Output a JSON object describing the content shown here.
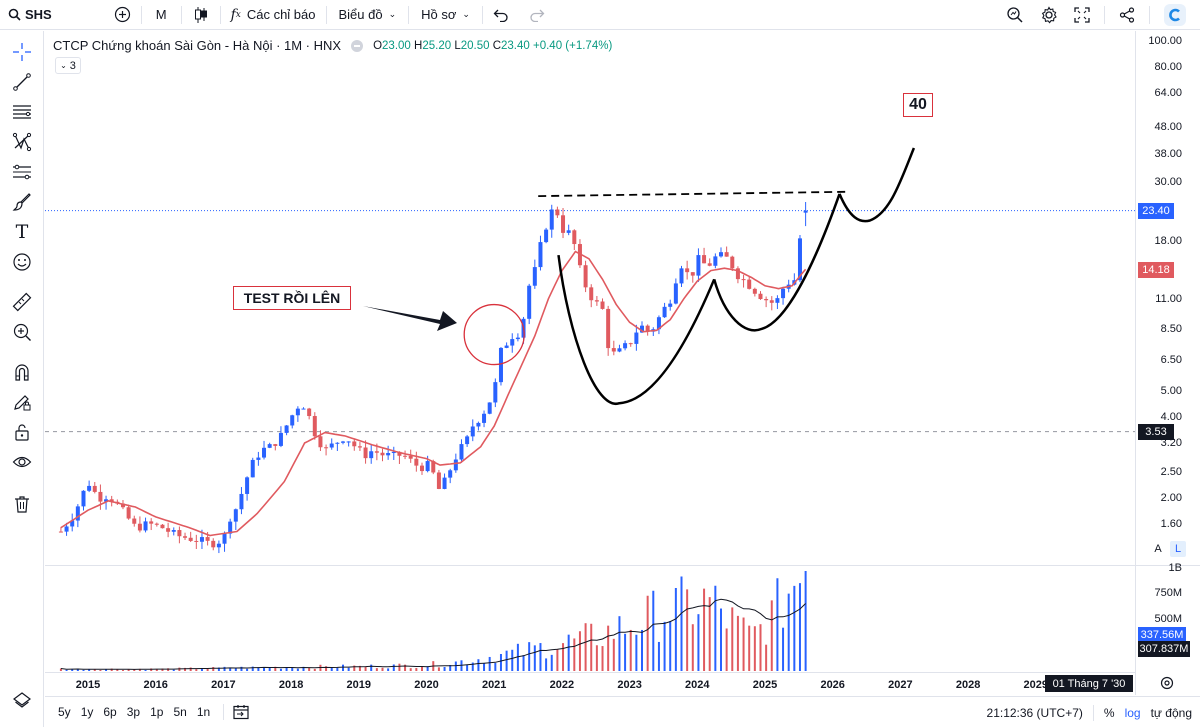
{
  "topbar": {
    "symbol": "SHS",
    "interval": "M",
    "indicators_label": "Các chỉ báo",
    "chart_type_label": "Biểu đồ",
    "profile_label": "Hồ sơ"
  },
  "legend": {
    "title": "CTCP Chứng khoán Sài Gòn - Hà Nội · 1M · HNX",
    "open_label": "O",
    "open": "23.00",
    "high_label": "H",
    "high": "25.20",
    "low_label": "L",
    "low": "20.50",
    "close_label": "C",
    "close": "23.40",
    "change": "+0.40 (+1.74%)",
    "collapsed_count": "3"
  },
  "price_axis": {
    "labels": [
      "100.00",
      "80.00",
      "64.00",
      "48.00",
      "38.00",
      "30.00",
      "18.00",
      "11.00",
      "8.50",
      "6.50",
      "5.00",
      "4.00",
      "3.20",
      "2.50",
      "2.00",
      "1.60"
    ],
    "last_price": "23.40",
    "ma_value": "14.18",
    "crosshair_price": "3.53",
    "auto_label": "A",
    "log_label": "L"
  },
  "volume_axis": {
    "labels": [
      "1B",
      "750M",
      "500M"
    ],
    "volume_value": "337.56M",
    "volume_ma_value": "307.837M"
  },
  "time_axis": {
    "labels": [
      "2015",
      "2016",
      "2017",
      "2018",
      "2019",
      "2020",
      "2021",
      "2022",
      "2023",
      "2024",
      "2025",
      "2026",
      "2027",
      "2028",
      "2029"
    ],
    "crosshair_date": "01 Tháng 7 '30"
  },
  "annotations": {
    "test_label": "TEST RỒI LÊN",
    "target_label": "40"
  },
  "bottombar": {
    "ranges": [
      "5y",
      "1y",
      "6p",
      "3p",
      "1p",
      "5n",
      "1n"
    ],
    "clock": "21:12:36 (UTC+7)",
    "percent": "%",
    "log": "log",
    "auto": "tự động"
  },
  "chart_data": {
    "type": "candlestick",
    "title": "CTCP Chứng khoán Sài Gòn - Hà Nội · 1M · HNX",
    "y_scale": "log",
    "ylim": [
      1.45,
      100
    ],
    "xlim": [
      2014.6,
      2030.6
    ],
    "series": [
      {
        "name": "SHS",
        "kind": "candlestick",
        "interval": "1M"
      },
      {
        "name": "MA",
        "kind": "line",
        "color": "#e05a5f"
      },
      {
        "name": "Volume",
        "kind": "bar"
      },
      {
        "name": "Volume MA",
        "kind": "line",
        "color": "#131722"
      }
    ],
    "close_path": [
      [
        2014.6,
        1.5
      ],
      [
        2014.8,
        1.75
      ],
      [
        2015.0,
        2.3
      ],
      [
        2015.15,
        2.0
      ],
      [
        2015.3,
        2.05
      ],
      [
        2015.5,
        1.8
      ],
      [
        2015.7,
        1.55
      ],
      [
        2015.9,
        1.6
      ],
      [
        2016.1,
        1.55
      ],
      [
        2016.3,
        1.45
      ],
      [
        2016.6,
        1.4
      ],
      [
        2016.8,
        1.35
      ],
      [
        2017.0,
        1.4
      ],
      [
        2017.1,
        1.7
      ],
      [
        2017.2,
        1.85
      ],
      [
        2017.3,
        2.2
      ],
      [
        2017.4,
        2.6
      ],
      [
        2017.55,
        3.0
      ],
      [
        2017.7,
        3.1
      ],
      [
        2017.85,
        3.4
      ],
      [
        2018.0,
        4.0
      ],
      [
        2018.15,
        4.6
      ],
      [
        2018.25,
        4.1
      ],
      [
        2018.35,
        3.5
      ],
      [
        2018.5,
        3.0
      ],
      [
        2018.65,
        3.2
      ],
      [
        2018.8,
        3.4
      ],
      [
        2019.0,
        3.0
      ],
      [
        2019.1,
        2.9
      ],
      [
        2019.2,
        3.0
      ],
      [
        2019.35,
        2.9
      ],
      [
        2019.5,
        2.85
      ],
      [
        2019.65,
        2.9
      ],
      [
        2019.8,
        2.7
      ],
      [
        2019.9,
        2.6
      ],
      [
        2020.05,
        2.65
      ],
      [
        2020.2,
        2.1
      ],
      [
        2020.3,
        2.4
      ],
      [
        2020.45,
        2.9
      ],
      [
        2020.6,
        3.3
      ],
      [
        2020.7,
        3.8
      ],
      [
        2020.8,
        4.0
      ],
      [
        2020.9,
        4.4
      ],
      [
        2021.0,
        5.0
      ],
      [
        2021.1,
        7.0
      ],
      [
        2021.25,
        8.0
      ],
      [
        2021.4,
        8.3
      ],
      [
        2021.5,
        12.0
      ],
      [
        2021.6,
        14.0
      ],
      [
        2021.7,
        18.0
      ],
      [
        2021.8,
        22.0
      ],
      [
        2021.9,
        24.5
      ],
      [
        2022.0,
        20.0
      ],
      [
        2022.15,
        19.0
      ],
      [
        2022.3,
        13.0
      ],
      [
        2022.45,
        11.0
      ],
      [
        2022.6,
        10.0
      ],
      [
        2022.7,
        7.0
      ],
      [
        2022.8,
        6.8
      ],
      [
        2022.9,
        7.2
      ],
      [
        2023.0,
        7.5
      ],
      [
        2023.15,
        8.8
      ],
      [
        2023.3,
        8.2
      ],
      [
        2023.45,
        9.5
      ],
      [
        2023.6,
        11.0
      ],
      [
        2023.75,
        15.0
      ],
      [
        2023.9,
        13.0
      ],
      [
        2024.0,
        15.5
      ],
      [
        2024.15,
        14.5
      ],
      [
        2024.3,
        16.0
      ],
      [
        2024.45,
        15.5
      ],
      [
        2024.6,
        13.5
      ],
      [
        2024.75,
        12.5
      ],
      [
        2024.9,
        11.5
      ],
      [
        2025.0,
        11.0
      ],
      [
        2025.15,
        10.5
      ],
      [
        2025.3,
        12.5
      ],
      [
        2025.45,
        13.0
      ],
      [
        2025.55,
        22.0
      ],
      [
        2025.6,
        23.4
      ]
    ],
    "ma_path": [
      [
        2014.6,
        1.55
      ],
      [
        2015.0,
        1.8
      ],
      [
        2015.3,
        1.95
      ],
      [
        2015.7,
        1.85
      ],
      [
        2016.0,
        1.7
      ],
      [
        2016.5,
        1.55
      ],
      [
        2016.8,
        1.45
      ],
      [
        2017.2,
        1.5
      ],
      [
        2017.5,
        1.75
      ],
      [
        2017.9,
        2.3
      ],
      [
        2018.2,
        3.2
      ],
      [
        2018.5,
        3.5
      ],
      [
        2018.8,
        3.4
      ],
      [
        2019.2,
        3.15
      ],
      [
        2019.6,
        2.95
      ],
      [
        2020.0,
        2.8
      ],
      [
        2020.2,
        2.65
      ],
      [
        2020.5,
        2.7
      ],
      [
        2020.8,
        3.1
      ],
      [
        2021.0,
        3.7
      ],
      [
        2021.2,
        4.8
      ],
      [
        2021.4,
        6.2
      ],
      [
        2021.6,
        8.0
      ],
      [
        2021.8,
        11.0
      ],
      [
        2022.0,
        14.0
      ],
      [
        2022.2,
        16.5
      ],
      [
        2022.4,
        15.5
      ],
      [
        2022.6,
        13.0
      ],
      [
        2022.8,
        10.5
      ],
      [
        2023.0,
        9.0
      ],
      [
        2023.2,
        8.3
      ],
      [
        2023.4,
        8.4
      ],
      [
        2023.6,
        9.2
      ],
      [
        2023.8,
        11.0
      ],
      [
        2024.0,
        12.8
      ],
      [
        2024.2,
        14.0
      ],
      [
        2024.4,
        14.3
      ],
      [
        2024.6,
        14.0
      ],
      [
        2024.8,
        13.2
      ],
      [
        2025.0,
        12.3
      ],
      [
        2025.2,
        12.0
      ],
      [
        2025.4,
        12.3
      ],
      [
        2025.6,
        14.18
      ]
    ],
    "volume_bar_values_m": [
      [
        2016,
        20
      ],
      [
        2017,
        30
      ],
      [
        2018,
        40
      ],
      [
        2019,
        45
      ],
      [
        2020,
        60
      ],
      [
        2021,
        150
      ],
      [
        2021.8,
        250
      ],
      [
        2022.5,
        350
      ],
      [
        2023.5,
        600
      ],
      [
        2024.2,
        700
      ],
      [
        2024.8,
        350
      ],
      [
        2025.5,
        1000
      ]
    ]
  },
  "colors": {
    "up": "#2962ff",
    "down": "#e05a5f",
    "ma": "#e05a5f",
    "annotation_red": "#d9323c",
    "accent": "#2962ff"
  }
}
